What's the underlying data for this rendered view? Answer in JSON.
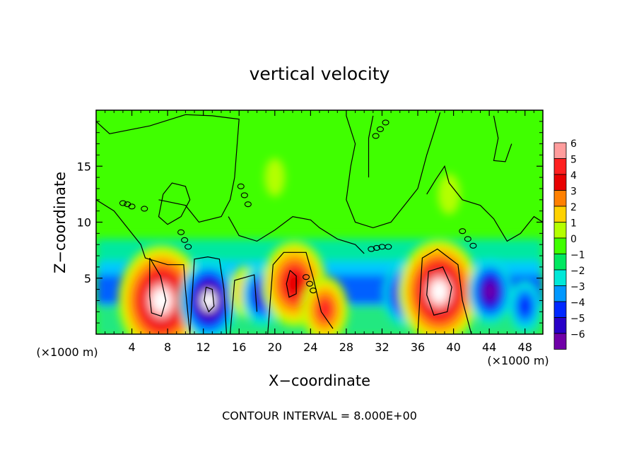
{
  "chart_data": {
    "type": "heatmap",
    "title": "vertical velocity",
    "xlabel": "X−coordinate",
    "ylabel": "Z−coordinate",
    "x_unit_left": "(×1000 m)",
    "x_unit_right": "(×1000 m)",
    "xlim": [
      0,
      50
    ],
    "ylim": [
      0,
      20
    ],
    "x_ticks": [
      4,
      8,
      12,
      16,
      20,
      24,
      28,
      32,
      36,
      40,
      44,
      48
    ],
    "y_ticks": [
      5,
      10,
      15
    ],
    "footer": "CONTOUR INTERVAL = 8.000E+00",
    "colorbar": {
      "levels": [
        6,
        5,
        4,
        3,
        2,
        1,
        0,
        -1,
        -2,
        -3,
        -4,
        -5,
        -6
      ],
      "labels": [
        "6",
        "5",
        "4",
        "3",
        "2",
        "1",
        "0",
        "−1",
        "−2",
        "−3",
        "−4",
        "−5",
        "−6"
      ],
      "colors": [
        "#ff9d9d",
        "#ff2020",
        "#e80000",
        "#ff8000",
        "#ffd200",
        "#b4ff00",
        "#40ff00",
        "#00e860",
        "#00e8d8",
        "#0098ff",
        "#0028ff",
        "#2800c8",
        "#7000a8"
      ]
    },
    "features": [
      {
        "kind": "updraft",
        "x": 7.3,
        "z": 3.0,
        "peak": 24
      },
      {
        "kind": "downdraft",
        "x": 12.6,
        "z": 3.0,
        "peak": -14
      },
      {
        "kind": "updraft",
        "x": 16.7,
        "z": 3.8,
        "peak": 5
      },
      {
        "kind": "downdraft",
        "x": 18.6,
        "z": 3.5,
        "peak": -8
      },
      {
        "kind": "updraft",
        "x": 22.2,
        "z": 4.5,
        "peak": 16
      },
      {
        "kind": "updraft",
        "x": 25.6,
        "z": 2.2,
        "peak": 10
      },
      {
        "kind": "downdraft",
        "x": 34.5,
        "z": 3.6,
        "peak": -9
      },
      {
        "kind": "updraft",
        "x": 38.4,
        "z": 3.8,
        "peak": 22
      },
      {
        "kind": "downdraft",
        "x": 44.1,
        "z": 3.8,
        "peak": -9
      },
      {
        "kind": "downdraft",
        "x": 48.0,
        "z": 2.5,
        "peak": -5
      },
      {
        "kind": "weak-updraft",
        "x": 39.5,
        "z": 12.5,
        "peak": 1.5
      },
      {
        "kind": "weak-updraft",
        "x": 20.0,
        "z": 14.0,
        "peak": 0.8
      }
    ]
  }
}
